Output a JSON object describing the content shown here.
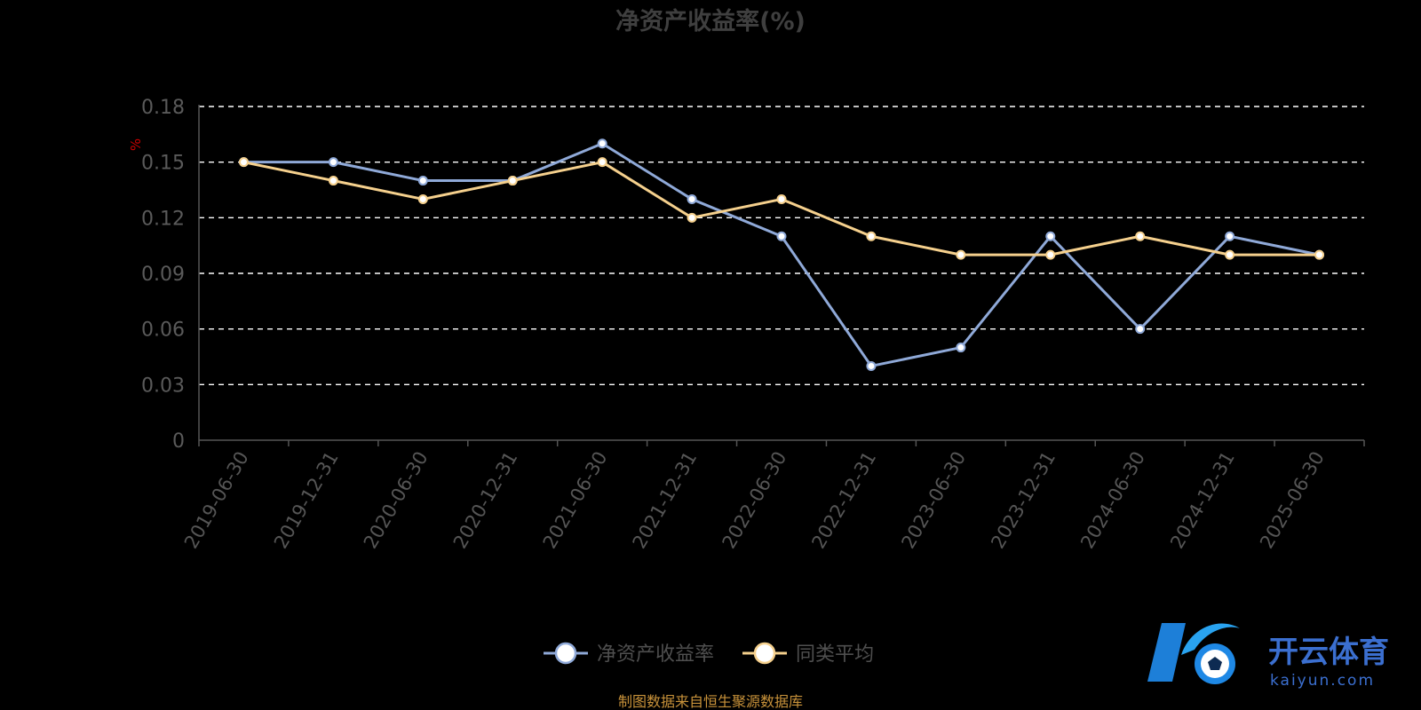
{
  "chart_data": {
    "type": "line",
    "title": "净资产收益率(%)",
    "ylabel": "%",
    "xlabel": "",
    "ylim": [
      0,
      0.18
    ],
    "y_ticks": [
      "0",
      "0.03",
      "0.06",
      "0.09",
      "0.12",
      "0.15",
      "0.18"
    ],
    "grid": true,
    "legend_position": "bottom",
    "categories": [
      "2019-06-30",
      "2019-12-31",
      "2020-06-30",
      "2020-12-31",
      "2021-06-30",
      "2021-12-31",
      "2022-06-30",
      "2022-12-31",
      "2023-06-30",
      "2023-12-31",
      "2024-06-30",
      "2024-12-31",
      "2025-06-30"
    ],
    "series": [
      {
        "name": "净资产收益率",
        "color": "#8fa9d8",
        "values": [
          0.15,
          0.15,
          0.14,
          0.14,
          0.16,
          0.13,
          0.11,
          0.04,
          0.05,
          0.11,
          0.06,
          0.11,
          0.1
        ]
      },
      {
        "name": "同类平均",
        "color": "#f5d08d",
        "values": [
          0.15,
          0.14,
          0.13,
          0.14,
          0.15,
          0.12,
          0.13,
          0.11,
          0.1,
          0.1,
          0.11,
          0.1,
          0.1
        ]
      }
    ]
  },
  "source_text": "制图数据来自恒生聚源数据库",
  "watermark": {
    "name": "开云体育",
    "domain": "kaiyun.com",
    "icon": "soccer-ball-k-logo"
  },
  "colors": {
    "background": "#000000",
    "grid": "#ffffff",
    "axis": "#555555",
    "unit": "#cc0000",
    "source": "#c8923a"
  }
}
